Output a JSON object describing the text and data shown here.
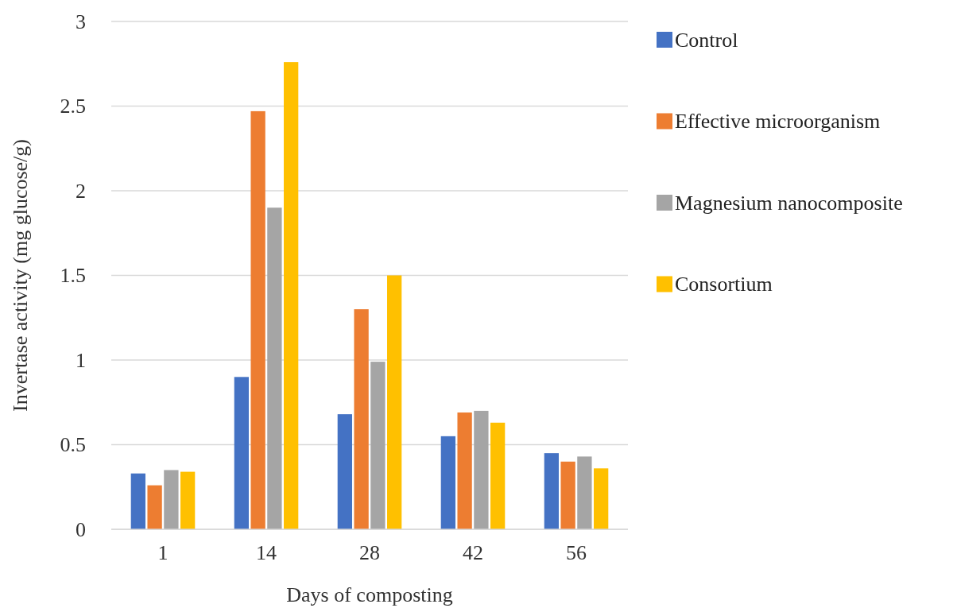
{
  "chart_data": {
    "type": "bar",
    "xlabel": "Days of composting",
    "ylabel": "Invertase activity (mg glucose/g)",
    "categories": [
      "1",
      "14",
      "28",
      "42",
      "56"
    ],
    "series": [
      {
        "name": "Control",
        "color": "#4472c4",
        "values": [
          0.33,
          0.9,
          0.68,
          0.55,
          0.45
        ]
      },
      {
        "name": "Effective microorganism",
        "color": "#ed7d31",
        "values": [
          0.26,
          2.47,
          1.3,
          0.69,
          0.4
        ]
      },
      {
        "name": "Magnesium nanocomposite",
        "color": "#a5a5a5",
        "values": [
          0.35,
          1.9,
          0.99,
          0.7,
          0.43
        ]
      },
      {
        "name": "Consortium",
        "color": "#ffc000",
        "values": [
          0.34,
          2.76,
          1.5,
          0.63,
          0.36
        ]
      }
    ],
    "ylim": [
      0,
      3
    ],
    "yticks": [
      0,
      0.5,
      1,
      1.5,
      2,
      2.5,
      3
    ],
    "grid": "y",
    "legend": "right"
  }
}
